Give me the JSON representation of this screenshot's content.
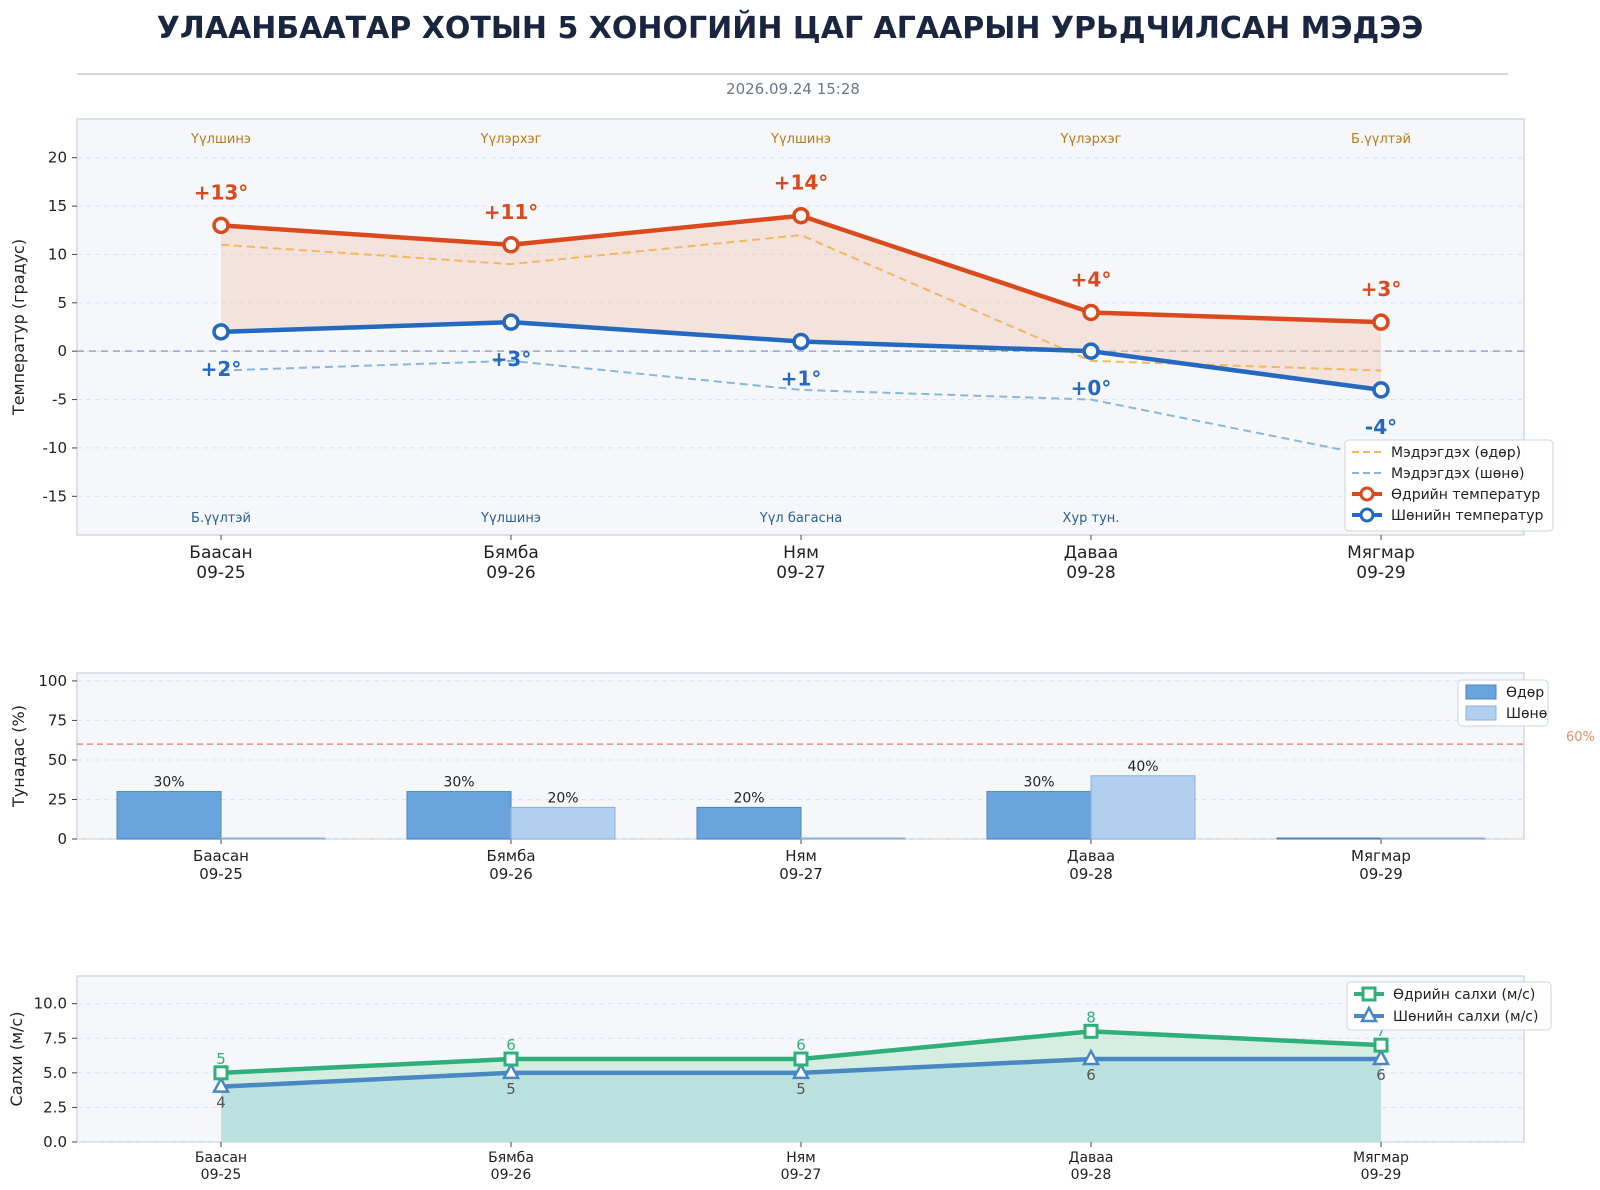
{
  "header": {
    "title": "УЛААНБААТАР ХОТЫН 5 ХОНОГИЙН ЦАГ АГААРЫН УРЬДЧИЛСАН МЭДЭЭ",
    "timestamp": "2026.09.24 15:28"
  },
  "colors": {
    "day_temp": "#d94a1e",
    "night_temp": "#2468bf",
    "feels_day": "#f0b860",
    "feels_night": "#88b8d8",
    "precip_day": "#6aa4dc",
    "precip_night": "#b2cff0",
    "wind_day": "#2fb07a",
    "wind_night": "#4a88c4",
    "threshold": "#e07a6a",
    "panel_bg": "#f5f7fa",
    "title": "#1a2540"
  },
  "chart_data": [
    {
      "type": "line",
      "categories": [
        [
          "Баасан",
          "09-25"
        ],
        [
          "Бямба",
          "09-26"
        ],
        [
          "Ням",
          "09-27"
        ],
        [
          "Даваа",
          "09-28"
        ],
        [
          "Мягмар",
          "09-29"
        ]
      ],
      "ylabel": "Температур (градус)",
      "ylim": [
        -19,
        24
      ],
      "yticks": [
        20,
        15,
        10,
        5,
        0,
        -5,
        -10,
        -15
      ],
      "grid": true,
      "legend_position": "bottom-right",
      "series": [
        {
          "name": "Мэдрэгдэх (өдөр)",
          "style": "dashed",
          "values": [
            11,
            9,
            12,
            -1,
            -2
          ]
        },
        {
          "name": "Мэдрэгдэх (шөнө)",
          "style": "dashed",
          "values": [
            -2,
            -1,
            -4,
            -5,
            -11
          ]
        },
        {
          "name": "Өдрийн температур",
          "marker": "circle",
          "values": [
            13,
            11,
            14,
            4,
            3
          ],
          "labels": [
            "+13°",
            "+11°",
            "+14°",
            "+4°",
            "+3°"
          ]
        },
        {
          "name": "Шөнийн температур",
          "marker": "circle",
          "values": [
            2,
            3,
            1,
            0,
            -4
          ],
          "labels": [
            "+2°",
            "+3°",
            "+1°",
            "+0°",
            "-4°"
          ]
        }
      ],
      "day_conditions": [
        "Үүлшинэ",
        "Үүлэрхэг",
        "Үүлшинэ",
        "Үүлэрхэг",
        "Б.үүлтэй"
      ],
      "night_conditions": [
        "Б.үүлтэй",
        "Үүлшинэ",
        "Үүл багасна",
        "Хур тун.",
        ""
      ]
    },
    {
      "type": "bar",
      "categories": [
        [
          "Баасан",
          "09-25"
        ],
        [
          "Бямба",
          "09-26"
        ],
        [
          "Ням",
          "09-27"
        ],
        [
          "Даваа",
          "09-28"
        ],
        [
          "Мягмар",
          "09-29"
        ]
      ],
      "ylabel": "Тунадас (%)",
      "ylim": [
        0,
        105
      ],
      "yticks": [
        100,
        75,
        50,
        25,
        0
      ],
      "grid": true,
      "legend_position": "top-right",
      "threshold": {
        "value": 60,
        "label": "60%"
      },
      "series": [
        {
          "name": "Өдөр",
          "values": [
            30,
            30,
            20,
            30,
            0
          ],
          "labels": [
            "30%",
            "30%",
            "20%",
            "30%",
            ""
          ]
        },
        {
          "name": "Шөнө",
          "values": [
            0,
            20,
            0,
            40,
            0
          ],
          "labels": [
            "",
            "20%",
            "",
            "40%",
            ""
          ]
        }
      ]
    },
    {
      "type": "area",
      "categories": [
        [
          "Баасан",
          "09-25"
        ],
        [
          "Бямба",
          "09-26"
        ],
        [
          "Ням",
          "09-27"
        ],
        [
          "Даваа",
          "09-28"
        ],
        [
          "Мягмар",
          "09-29"
        ]
      ],
      "ylabel": "Салхи (м/с)",
      "ylim": [
        0,
        12
      ],
      "yticks": [
        "10.0",
        "7.5",
        "5.0",
        "2.5",
        "0.0"
      ],
      "grid": true,
      "legend_position": "top-right",
      "series": [
        {
          "name": "Өдрийн салхи (м/с)",
          "marker": "square",
          "values": [
            5,
            6,
            6,
            8,
            7
          ],
          "labels": [
            "5",
            "6",
            "6",
            "8",
            "7"
          ]
        },
        {
          "name": "Шөнийн салхи (м/с)",
          "marker": "triangle",
          "values": [
            4,
            5,
            5,
            6,
            6
          ],
          "labels": [
            "4",
            "5",
            "5",
            "6",
            "6"
          ]
        }
      ]
    }
  ]
}
